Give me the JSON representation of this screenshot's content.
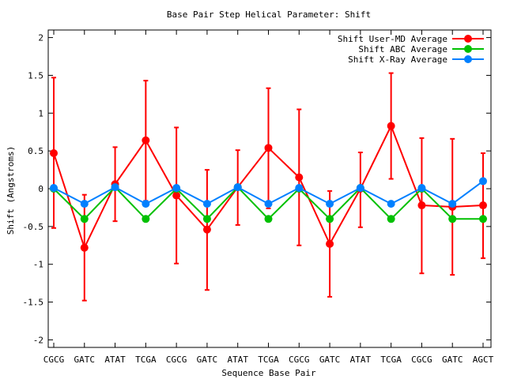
{
  "chart_data": {
    "type": "line",
    "title": "Base Pair Step Helical Parameter: Shift",
    "xlabel": "Sequence Base Pair",
    "ylabel": "Shift (Angstroms)",
    "ylim": [
      -2.1,
      2.1
    ],
    "yticks": [
      2,
      1.5,
      1,
      0.5,
      0,
      -0.5,
      -1,
      -1.5,
      -2
    ],
    "ytick_labels": [
      "2",
      "1.5",
      "1",
      "0.5",
      "0",
      "-0.5",
      "-1",
      "-1.5",
      "-2"
    ],
    "categories": [
      "CGCG",
      "GATC",
      "ATAT",
      "TCGA",
      "CGCG",
      "GATC",
      "ATAT",
      "TCGA",
      "CGCG",
      "GATC",
      "ATAT",
      "TCGA",
      "CGCG",
      "GATC",
      "AGCT"
    ],
    "legend_position": "top-right",
    "grid": false,
    "series": [
      {
        "name": "Shift User-MD Average",
        "color": "#ff0000",
        "values": [
          0.47,
          -0.78,
          0.06,
          0.64,
          -0.09,
          -0.54,
          0.02,
          0.54,
          0.15,
          -0.73,
          0.0,
          0.83,
          -0.22,
          -0.24,
          -0.22
        ],
        "error_low": [
          -0.52,
          -1.48,
          -0.43,
          -0.16,
          -0.99,
          -1.34,
          -0.48,
          -0.26,
          -0.75,
          -1.43,
          -0.51,
          0.13,
          -1.12,
          -1.14,
          -0.92
        ],
        "error_high": [
          1.47,
          -0.08,
          0.55,
          1.43,
          0.81,
          0.25,
          0.51,
          1.33,
          1.05,
          -0.03,
          0.48,
          1.53,
          0.67,
          0.66,
          0.47
        ]
      },
      {
        "name": "Shift ABC Average",
        "color": "#00c000",
        "values": [
          0.0,
          -0.4,
          0.02,
          -0.4,
          0.0,
          -0.4,
          0.02,
          -0.4,
          0.0,
          -0.4,
          0.01,
          -0.4,
          0.0,
          -0.4,
          -0.4
        ]
      },
      {
        "name": "Shift X-Ray Average",
        "color": "#0080ff",
        "values": [
          0.01,
          -0.2,
          0.02,
          -0.2,
          0.01,
          -0.2,
          0.02,
          -0.2,
          0.01,
          -0.2,
          0.01,
          -0.2,
          0.01,
          -0.2,
          0.1
        ]
      }
    ]
  }
}
